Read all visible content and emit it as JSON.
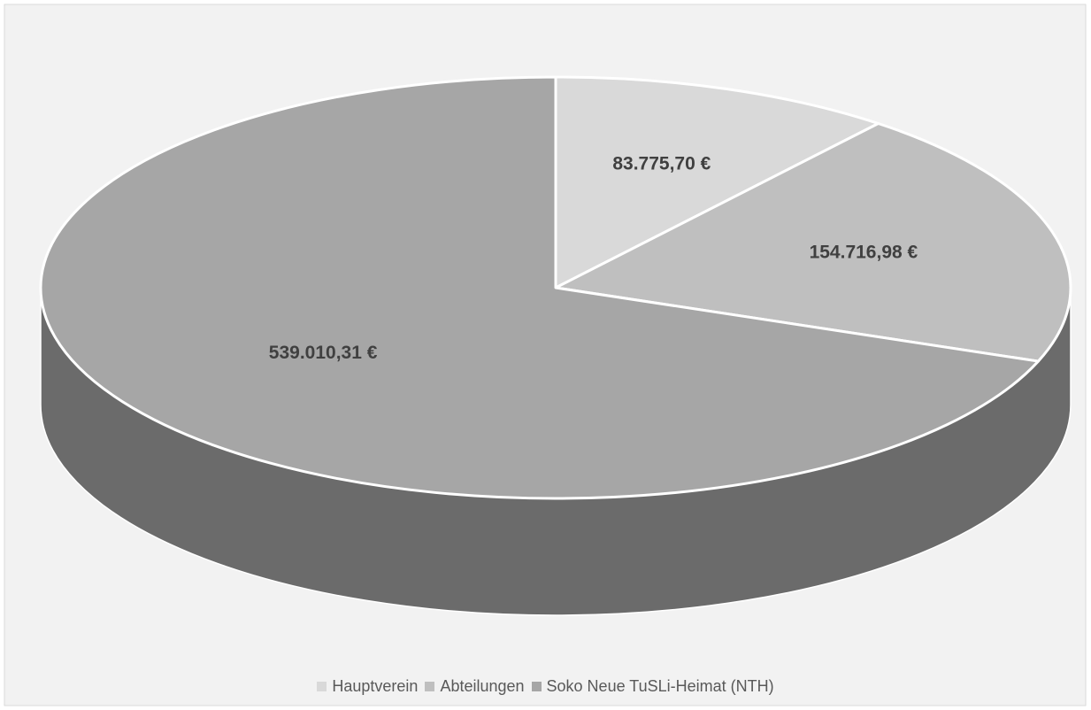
{
  "chart_data": {
    "type": "pie",
    "title": "",
    "style": "3d",
    "legend_position": "bottom",
    "currency": "€",
    "categories": [
      "Hauptverein",
      "Abteilungen",
      "Soko Neue TuSLi-Heimat (NTH)"
    ],
    "values": [
      83775.7,
      154716.98,
      539010.31
    ],
    "data_labels": [
      "83.775,70 €",
      "154.716,98 €",
      "539.010,31 €"
    ],
    "colors": {
      "Hauptverein": "#d9d9d9",
      "Abteilungen": "#bfbfbf",
      "Soko Neue TuSLi-Heimat (NTH)": "#a6a6a6",
      "side": "#6b6b6b",
      "background": "#f2f2f2",
      "border": "#d9d9d9"
    }
  }
}
